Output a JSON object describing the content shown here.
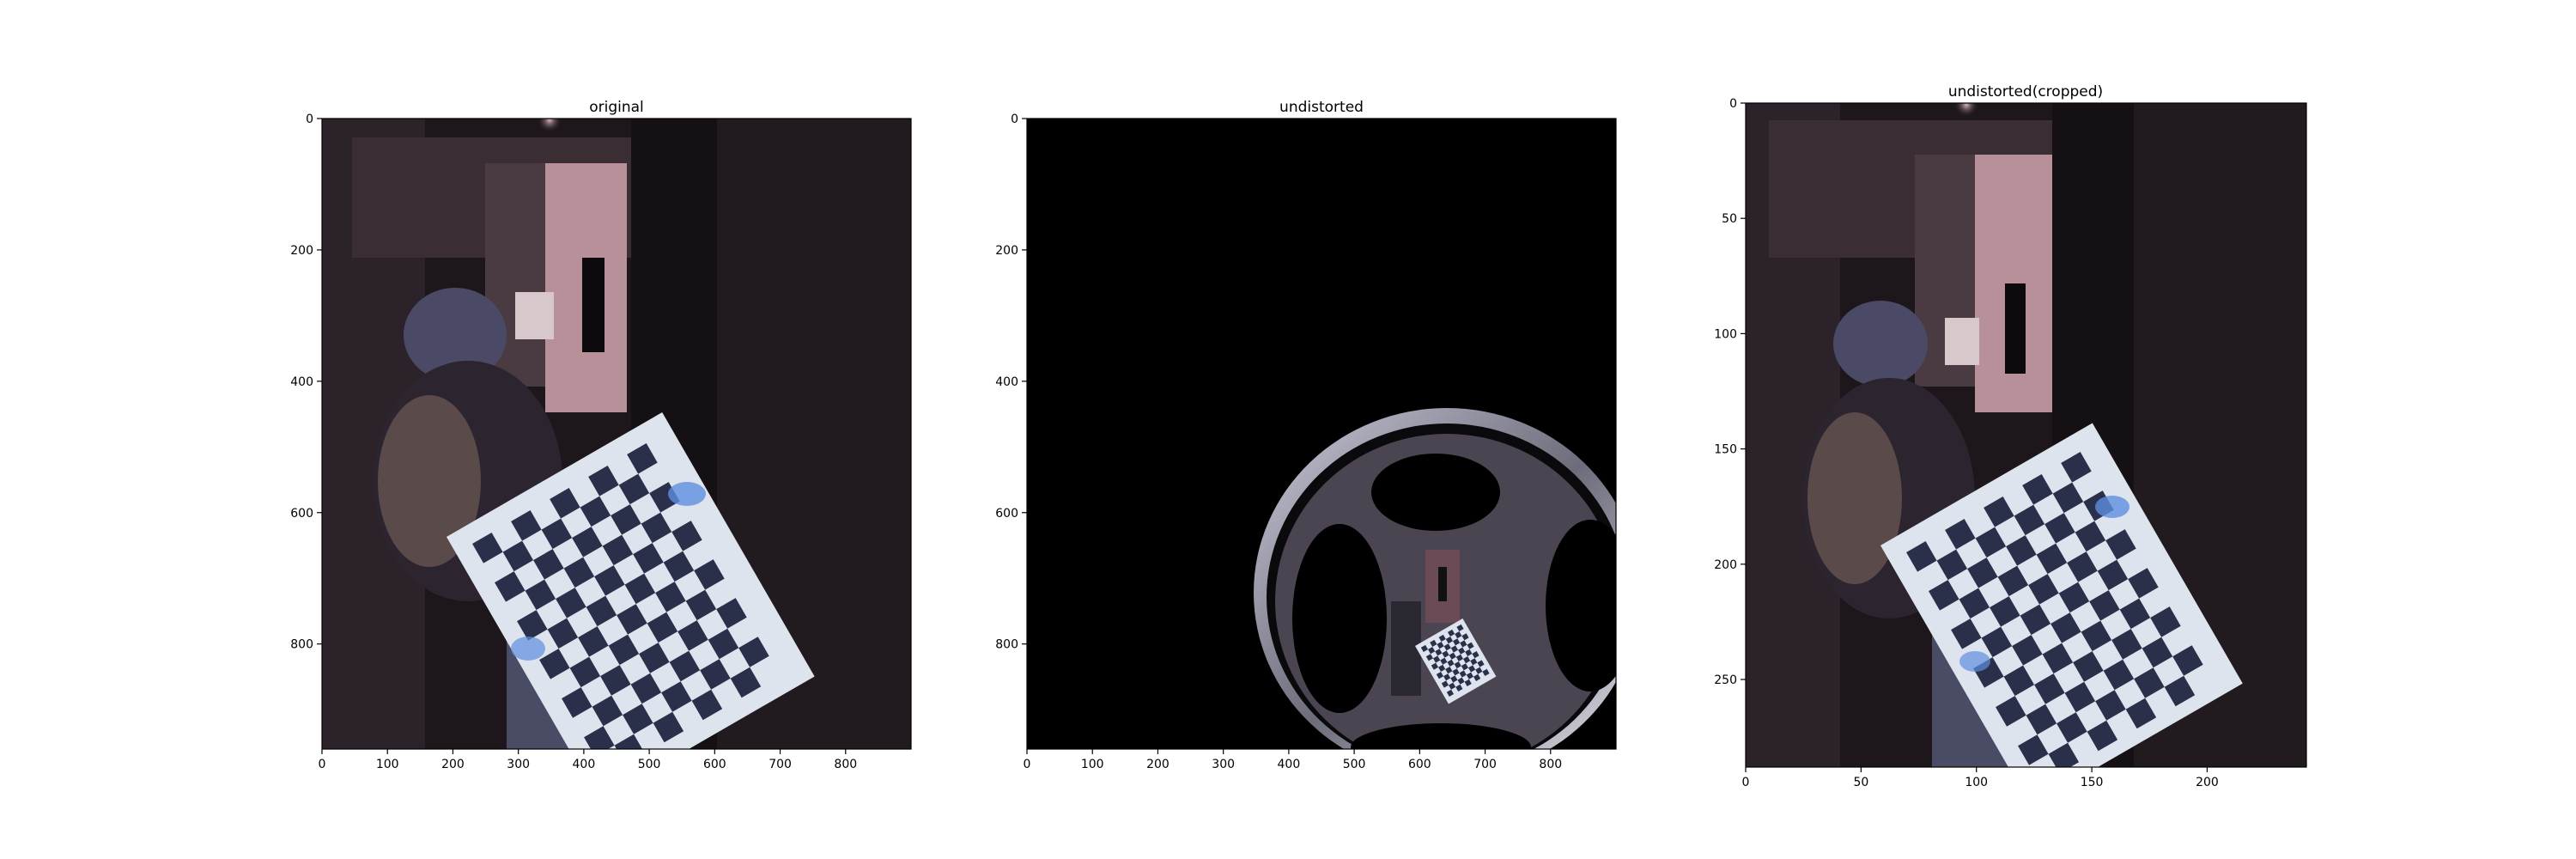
{
  "chart_data": [
    {
      "type": "image",
      "title": "original",
      "xlim": [
        0,
        900
      ],
      "ylim": [
        960,
        0
      ],
      "xticks": [
        0,
        100,
        200,
        300,
        400,
        500,
        600,
        700,
        800
      ],
      "yticks": [
        0,
        200,
        400,
        600,
        800
      ],
      "content": "camera frame with checkerboard calibration pattern (fisheye distorted)"
    },
    {
      "type": "image",
      "title": "undistorted",
      "xlim": [
        0,
        900
      ],
      "ylim": [
        960,
        0
      ],
      "xticks": [
        0,
        100,
        200,
        300,
        400,
        500,
        600,
        700,
        800
      ],
      "yticks": [
        0,
        200,
        400,
        600,
        800
      ],
      "content": "undistorted frame: black background with warped fisheye disc and small checkerboard"
    },
    {
      "type": "image",
      "title": "undistorted(cropped)",
      "xlim": [
        0,
        243
      ],
      "ylim": [
        288,
        0
      ],
      "xticks": [
        0,
        50,
        100,
        150,
        200
      ],
      "yticks": [
        0,
        50,
        100,
        150,
        200,
        250
      ],
      "content": "cropped undistorted region showing room and checkerboard"
    }
  ],
  "colors": {
    "scene_dark": "#1f1a1f",
    "door": "#b48a92",
    "board": "#dfe6ee",
    "square": "#2a2f45",
    "highlight": "#7aa8e8"
  }
}
